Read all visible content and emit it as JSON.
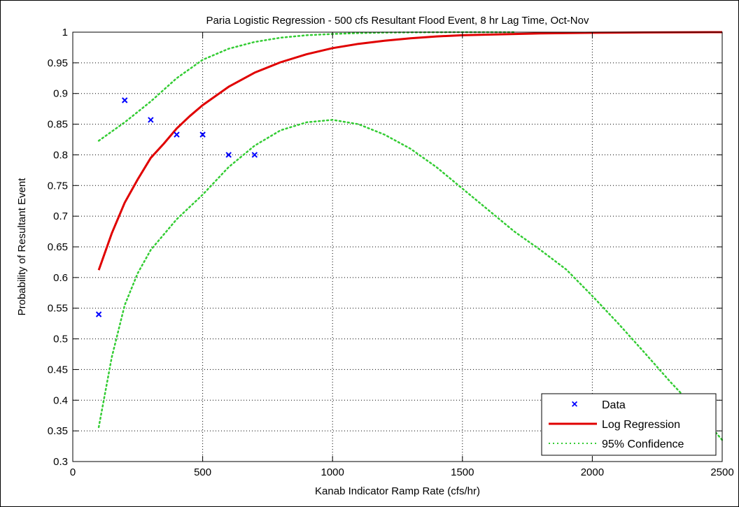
{
  "chart_data": {
    "type": "scatter",
    "title": "Paria Logistic Regression - 500 cfs Resultant Flood Event, 8 hr Lag Time, Oct-Nov",
    "xlabel": "Kanab Indicator Ramp Rate (cfs/hr)",
    "ylabel": "Probability of Resultant Event",
    "xlim": [
      0,
      2500
    ],
    "ylim": [
      0.3,
      1
    ],
    "xticks": [
      0,
      500,
      1000,
      1500,
      2000,
      2500
    ],
    "xtick_labels": [
      "0",
      "500",
      "1000",
      "1500",
      "2000",
      "2500"
    ],
    "yticks": [
      0.3,
      0.35,
      0.4,
      0.45,
      0.5,
      0.55,
      0.6,
      0.65,
      0.7,
      0.75,
      0.8,
      0.85,
      0.9,
      0.95,
      1
    ],
    "ytick_labels": [
      "0.3",
      "0.35",
      "0.4",
      "0.45",
      "0.5",
      "0.55",
      "0.6",
      "0.65",
      "0.7",
      "0.75",
      "0.8",
      "0.85",
      "0.9",
      "0.95",
      "1"
    ],
    "grid": true,
    "legend_position": "bottom-right",
    "series": [
      {
        "name": "Data",
        "type": "scatter",
        "marker": "x",
        "color": "#0000ff",
        "x": [
          100,
          200,
          300,
          400,
          500,
          600,
          700
        ],
        "y": [
          0.54,
          0.889,
          0.857,
          0.833,
          0.833,
          0.8,
          0.8
        ]
      },
      {
        "name": "Log Regression",
        "type": "line",
        "color": "#e00000",
        "x": [
          100,
          150,
          200,
          250,
          300,
          350,
          400,
          450,
          500,
          600,
          700,
          800,
          900,
          1000,
          1100,
          1200,
          1300,
          1400,
          1500,
          1600,
          1800,
          2000,
          2200,
          2500
        ],
        "y": [
          0.612,
          0.672,
          0.722,
          0.76,
          0.795,
          0.818,
          0.843,
          0.863,
          0.881,
          0.911,
          0.934,
          0.951,
          0.964,
          0.974,
          0.981,
          0.986,
          0.99,
          0.993,
          0.995,
          0.996,
          0.998,
          0.999,
          0.9995,
          1.0
        ]
      },
      {
        "name": "95% Confidence",
        "type": "line",
        "dash": "dotted",
        "color": "#33cc33",
        "x": [
          100,
          200,
          300,
          400,
          500,
          600,
          700,
          800,
          900,
          1000,
          1100,
          1200,
          1300,
          1400,
          1500,
          1600,
          1700
        ],
        "y": [
          0.823,
          0.853,
          0.887,
          0.925,
          0.955,
          0.973,
          0.984,
          0.991,
          0.995,
          0.997,
          0.9985,
          0.9993,
          0.9997,
          0.9999,
          1.0,
          1.0,
          1.0
        ]
      },
      {
        "name": "",
        "type": "line",
        "dash": "dotted",
        "color": "#33cc33",
        "x": [
          100,
          150,
          200,
          250,
          300,
          400,
          500,
          600,
          700,
          800,
          900,
          1000,
          1100,
          1200,
          1300,
          1400,
          1500,
          1600,
          1700,
          1800,
          1900,
          2000,
          2100,
          2200,
          2300,
          2400,
          2500
        ],
        "y": [
          0.356,
          0.47,
          0.555,
          0.607,
          0.645,
          0.695,
          0.735,
          0.78,
          0.815,
          0.84,
          0.853,
          0.857,
          0.85,
          0.833,
          0.81,
          0.78,
          0.745,
          0.71,
          0.675,
          0.645,
          0.613,
          0.57,
          0.525,
          0.478,
          0.43,
          0.385,
          0.335
        ]
      }
    ]
  }
}
